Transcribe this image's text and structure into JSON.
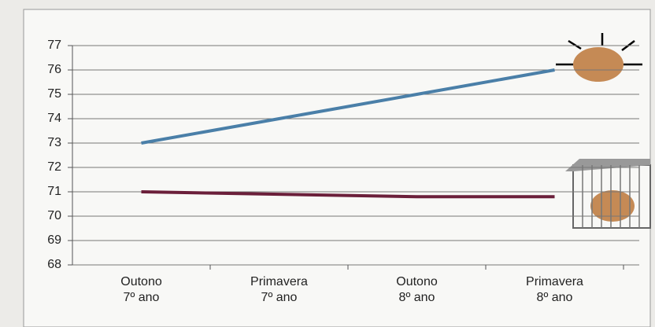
{
  "chart_data": {
    "type": "line",
    "categories": [
      [
        "Outono",
        "7º ano"
      ],
      [
        "Primavera",
        "7º ano"
      ],
      [
        "Outono",
        "8º ano"
      ],
      [
        "Primavera",
        "8º ano"
      ]
    ],
    "series": [
      {
        "color": "#4a7fa8",
        "values": [
          73,
          74,
          75,
          76
        ]
      },
      {
        "color": "#6b1f3a",
        "values": [
          71,
          70.9,
          70.8,
          70.8
        ]
      }
    ],
    "ylim": [
      68,
      77
    ],
    "yticks": [
      68,
      69,
      70,
      71,
      72,
      73,
      74,
      75,
      76,
      77
    ],
    "grid": true
  }
}
